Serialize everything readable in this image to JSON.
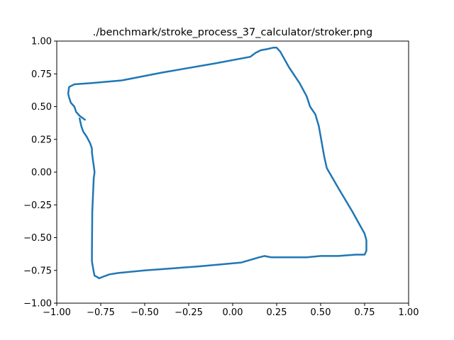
{
  "chart_data": {
    "type": "line",
    "title": "./benchmark/stroke_process_37_calculator/stroker.png",
    "xlabel": "",
    "ylabel": "",
    "xlim": [
      -1.0,
      1.0
    ],
    "ylim": [
      -1.0,
      1.0
    ],
    "xticks": [
      "−1.00",
      "−0.75",
      "−0.50",
      "−0.25",
      "0.00",
      "0.25",
      "0.50",
      "0.75",
      "1.00"
    ],
    "yticks": [
      "1.00",
      "0.75",
      "0.50",
      "0.25",
      "0.00",
      "−0.25",
      "−0.50",
      "−0.75",
      "−1.00"
    ],
    "xtick_values": [
      -1.0,
      -0.75,
      -0.5,
      -0.25,
      0.0,
      0.25,
      0.5,
      0.75,
      1.0
    ],
    "ytick_values": [
      1.0,
      0.75,
      0.5,
      0.25,
      0.0,
      -0.25,
      -0.5,
      -0.75,
      -1.0
    ],
    "grid": false,
    "legend": "none",
    "series": [
      {
        "color": "#1f77b4",
        "x": [
          -0.84,
          -0.87,
          -0.89,
          -0.9,
          -0.92,
          -0.93,
          -0.935,
          -0.93,
          -0.9,
          -0.8,
          -0.63,
          -0.4,
          -0.1,
          0.1,
          0.13,
          0.16,
          0.2,
          0.23,
          0.25,
          0.27,
          0.32,
          0.38,
          0.42,
          0.44,
          0.47,
          0.49,
          0.52,
          0.535,
          0.6,
          0.68,
          0.75,
          0.76,
          0.76,
          0.75,
          0.7,
          0.6,
          0.5,
          0.42,
          0.33,
          0.22,
          0.18,
          0.15,
          0.1,
          0.05,
          -0.2,
          -0.5,
          -0.65,
          -0.7,
          -0.74,
          -0.76,
          -0.77,
          -0.785,
          -0.79,
          -0.795,
          -0.8,
          -0.8,
          -0.798,
          -0.79,
          -0.785,
          -0.79,
          -0.795,
          -0.8,
          -0.8,
          -0.81,
          -0.83,
          -0.85,
          -0.86,
          -0.87
        ],
        "y": [
          0.4,
          0.43,
          0.46,
          0.5,
          0.53,
          0.57,
          0.6,
          0.65,
          0.67,
          0.68,
          0.7,
          0.76,
          0.83,
          0.88,
          0.91,
          0.93,
          0.94,
          0.95,
          0.95,
          0.92,
          0.8,
          0.68,
          0.58,
          0.5,
          0.44,
          0.35,
          0.12,
          0.03,
          -0.12,
          -0.3,
          -0.47,
          -0.52,
          -0.6,
          -0.63,
          -0.63,
          -0.64,
          -0.64,
          -0.65,
          -0.65,
          -0.65,
          -0.64,
          -0.65,
          -0.67,
          -0.69,
          -0.72,
          -0.75,
          -0.77,
          -0.78,
          -0.8,
          -0.81,
          -0.8,
          -0.79,
          -0.76,
          -0.72,
          -0.68,
          -0.6,
          -0.3,
          -0.05,
          0.0,
          0.05,
          0.1,
          0.15,
          0.18,
          0.22,
          0.27,
          0.31,
          0.35,
          0.41
        ]
      }
    ]
  }
}
